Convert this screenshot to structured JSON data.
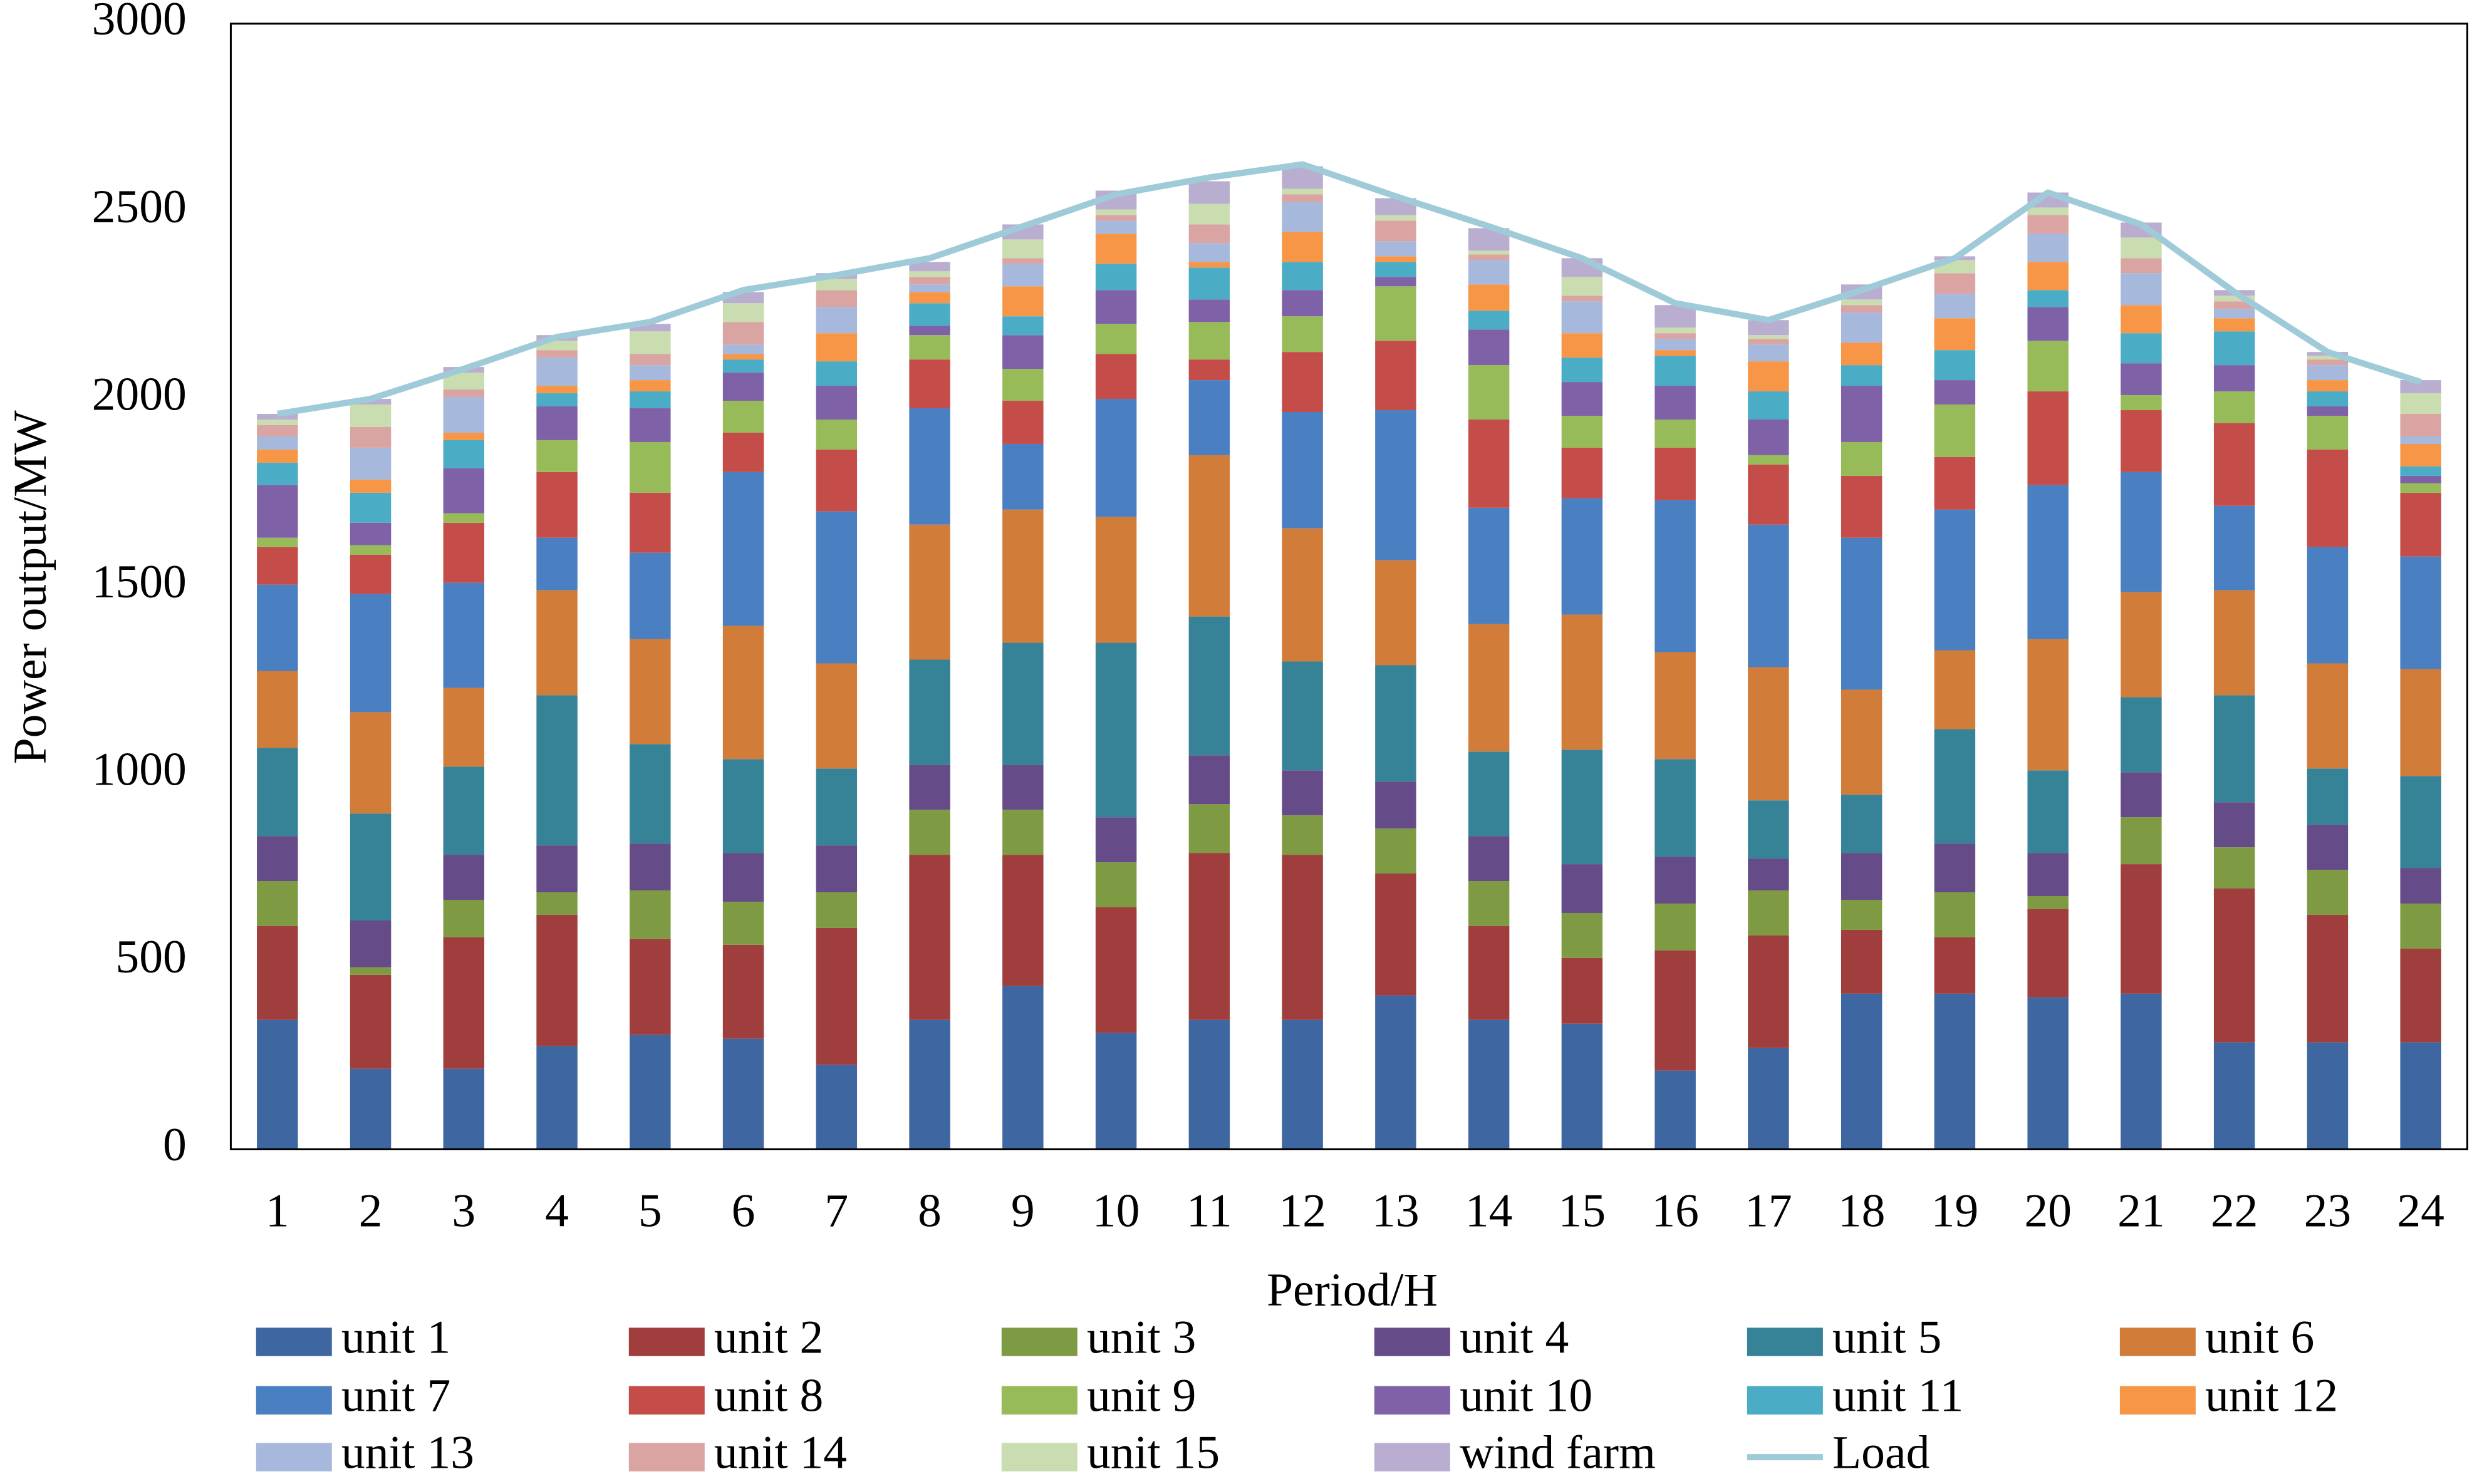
{
  "chart_data": {
    "type": "bar",
    "stacked": true,
    "x_label": "Period/H",
    "y_label": "Power output/MW",
    "categories": [
      "1",
      "2",
      "3",
      "4",
      "5",
      "6",
      "7",
      "8",
      "9",
      "10",
      "11",
      "12",
      "13",
      "14",
      "15",
      "16",
      "17",
      "18",
      "19",
      "20",
      "21",
      "22",
      "23",
      "24"
    ],
    "ylim": [
      0,
      3000
    ],
    "yticks": [
      0,
      500,
      1000,
      1500,
      2000,
      2500,
      3000
    ],
    "grid": false,
    "legend": "bottom",
    "series": [
      {
        "name": "unit 1",
        "color": "#3e66a0",
        "values": [
          345,
          215,
          215,
          275,
          305,
          295,
          225,
          345,
          435,
          310,
          345,
          345,
          410,
          345,
          335,
          210,
          270,
          415,
          415,
          405,
          415,
          285,
          285,
          285
        ]
      },
      {
        "name": "unit 2",
        "color": "#a03d3d",
        "values": [
          250,
          250,
          350,
          350,
          255,
          250,
          365,
          440,
          350,
          335,
          445,
          440,
          325,
          250,
          175,
          320,
          300,
          170,
          150,
          235,
          345,
          410,
          340,
          250
        ]
      },
      {
        "name": "unit 3",
        "color": "#7e9b43",
        "values": [
          120,
          20,
          100,
          60,
          130,
          115,
          95,
          120,
          120,
          120,
          130,
          105,
          120,
          120,
          120,
          125,
          120,
          80,
          120,
          35,
          125,
          110,
          120,
          120
        ]
      },
      {
        "name": "unit 4",
        "color": "#654b88",
        "values": [
          120,
          125,
          120,
          125,
          125,
          130,
          125,
          120,
          120,
          120,
          130,
          120,
          125,
          120,
          130,
          125,
          85,
          125,
          130,
          115,
          120,
          120,
          120,
          95
        ]
      },
      {
        "name": "unit 5",
        "color": "#368397",
        "values": [
          235,
          285,
          235,
          400,
          265,
          250,
          205,
          280,
          325,
          465,
          370,
          290,
          310,
          225,
          305,
          260,
          155,
          155,
          305,
          220,
          200,
          285,
          150,
          245
        ]
      },
      {
        "name": "unit 6",
        "color": "#d27c3a",
        "values": [
          205,
          270,
          210,
          280,
          280,
          355,
          280,
          360,
          355,
          335,
          430,
          355,
          280,
          340,
          360,
          285,
          355,
          280,
          210,
          350,
          280,
          280,
          280,
          285
        ]
      },
      {
        "name": "unit 7",
        "color": "#4a7fc1",
        "values": [
          230,
          315,
          280,
          140,
          230,
          410,
          405,
          310,
          175,
          315,
          200,
          310,
          400,
          310,
          310,
          405,
          380,
          405,
          375,
          410,
          320,
          225,
          310,
          300
        ]
      },
      {
        "name": "unit 8",
        "color": "#c44d4a",
        "values": [
          100,
          105,
          160,
          175,
          160,
          105,
          165,
          130,
          115,
          120,
          55,
          160,
          185,
          235,
          135,
          140,
          160,
          165,
          140,
          250,
          165,
          220,
          260,
          170
        ]
      },
      {
        "name": "unit 9",
        "color": "#98bb59",
        "values": [
          25,
          25,
          25,
          85,
          135,
          85,
          80,
          65,
          85,
          80,
          100,
          95,
          145,
          145,
          85,
          75,
          25,
          90,
          140,
          135,
          40,
          85,
          90,
          25
        ]
      },
      {
        "name": "unit 10",
        "color": "#7f61a8",
        "values": [
          140,
          60,
          120,
          90,
          90,
          75,
          90,
          25,
          90,
          90,
          60,
          70,
          25,
          95,
          90,
          90,
          95,
          150,
          65,
          90,
          85,
          70,
          25,
          20
        ]
      },
      {
        "name": "unit 11",
        "color": "#4bacc6",
        "values": [
          60,
          80,
          75,
          35,
          45,
          35,
          65,
          60,
          50,
          70,
          85,
          75,
          40,
          50,
          65,
          80,
          75,
          55,
          80,
          45,
          80,
          90,
          40,
          25
        ]
      },
      {
        "name": "unit 12",
        "color": "#f79646",
        "values": [
          35,
          35,
          20,
          20,
          30,
          15,
          75,
          30,
          80,
          80,
          15,
          80,
          15,
          70,
          65,
          15,
          80,
          60,
          85,
          75,
          75,
          35,
          30,
          60
        ]
      },
      {
        "name": "unit 13",
        "color": "#a6b8dc",
        "values": [
          35,
          85,
          95,
          75,
          40,
          25,
          70,
          20,
          60,
          35,
          50,
          80,
          40,
          65,
          85,
          30,
          45,
          80,
          65,
          75,
          85,
          25,
          40,
          20
        ]
      },
      {
        "name": "unit 14",
        "color": "#daa4a3",
        "values": [
          30,
          55,
          20,
          20,
          30,
          60,
          45,
          20,
          15,
          15,
          50,
          20,
          55,
          15,
          15,
          15,
          15,
          20,
          55,
          50,
          40,
          20,
          15,
          60
        ]
      },
      {
        "name": "unit 15",
        "color": "#c9ddb1",
        "values": [
          15,
          60,
          45,
          25,
          60,
          50,
          30,
          15,
          50,
          15,
          55,
          15,
          15,
          10,
          50,
          15,
          10,
          15,
          35,
          20,
          55,
          15,
          10,
          55
        ]
      },
      {
        "name": "wind farm",
        "color": "#b9aed0",
        "values": [
          15,
          15,
          15,
          15,
          20,
          30,
          15,
          25,
          40,
          50,
          60,
          60,
          45,
          60,
          50,
          60,
          40,
          40,
          10,
          40,
          40,
          15,
          10,
          35
        ]
      },
      {
        "name": "Load",
        "type": "line",
        "color": "#9fcbd9",
        "values": [
          1960,
          2000,
          2080,
          2165,
          2205,
          2290,
          2330,
          2375,
          2460,
          2545,
          2590,
          2625,
          2540,
          2460,
          2375,
          2255,
          2210,
          2290,
          2375,
          2550,
          2465,
          2285,
          2125,
          2045
        ]
      }
    ]
  }
}
